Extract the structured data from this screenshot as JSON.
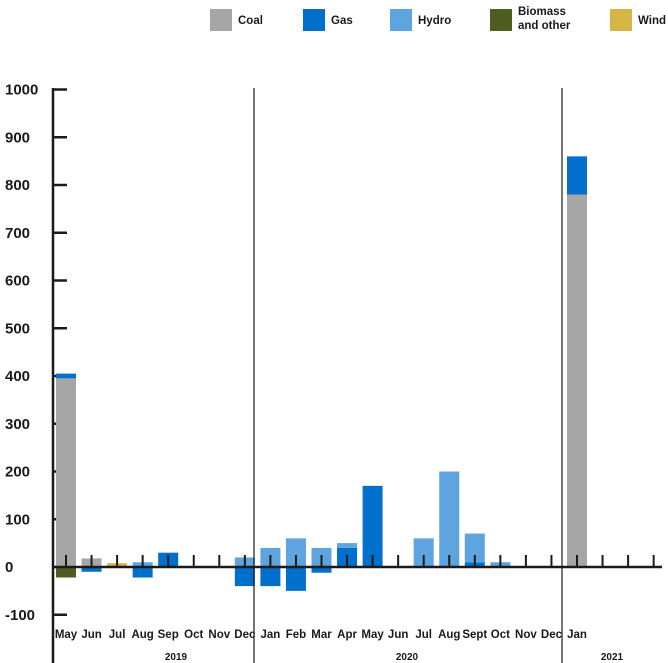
{
  "chart_data": {
    "type": "bar",
    "stacked": true,
    "categories": [
      "May",
      "Jun",
      "Jul",
      "Aug",
      "Sep",
      "Oct",
      "Nov",
      "Dec",
      "Jan",
      "Feb",
      "Mar",
      "Apr",
      "May",
      "Jun",
      "Jul",
      "Aug",
      "Sept",
      "Oct",
      "Nov",
      "Dec",
      "Jan",
      "",
      "",
      ""
    ],
    "year_labels": [
      {
        "label": "2019",
        "from": 0,
        "to": 7
      },
      {
        "label": "2020",
        "from": 8,
        "to": 19
      },
      {
        "label": "2021",
        "from": 20,
        "to": 23
      }
    ],
    "yticks": [
      -100,
      0,
      100,
      200,
      300,
      400,
      500,
      600,
      700,
      800,
      900,
      1000
    ],
    "ylim": [
      -100,
      1000
    ],
    "colors": {
      "Coal": "#a6a6a6",
      "Gas": "#0070cc",
      "Hydro": "#5ea5e0",
      "Biomass and other": "#4e5e23",
      "Wind": "#d4b545"
    },
    "series": [
      {
        "name": "Coal",
        "values": [
          395,
          18,
          0,
          0,
          0,
          0,
          0,
          0,
          0,
          0,
          0,
          0,
          0,
          0,
          0,
          0,
          0,
          0,
          0,
          0,
          780,
          0,
          0,
          0
        ]
      },
      {
        "name": "Gas",
        "values": [
          10,
          -10,
          0,
          -22,
          30,
          0,
          0,
          -40,
          -40,
          -50,
          -12,
          40,
          170,
          0,
          0,
          0,
          10,
          0,
          0,
          0,
          80,
          0,
          0,
          0
        ]
      },
      {
        "name": "Hydro",
        "values": [
          0,
          0,
          0,
          10,
          0,
          0,
          0,
          20,
          40,
          60,
          40,
          10,
          0,
          0,
          60,
          200,
          60,
          10,
          0,
          0,
          0,
          0,
          0,
          0
        ]
      },
      {
        "name": "Biomass and other",
        "values": [
          -22,
          0,
          0,
          0,
          0,
          0,
          0,
          0,
          0,
          0,
          0,
          0,
          0,
          0,
          0,
          0,
          0,
          0,
          0,
          0,
          0,
          0,
          0,
          0
        ]
      },
      {
        "name": "Wind",
        "values": [
          0,
          0,
          8,
          0,
          0,
          0,
          0,
          0,
          0,
          0,
          0,
          0,
          0,
          0,
          0,
          0,
          0,
          0,
          0,
          0,
          0,
          0,
          0,
          0
        ]
      }
    ],
    "legend": {
      "placement": "top",
      "items": [
        {
          "name": "Coal",
          "lines": [
            "Coal"
          ]
        },
        {
          "name": "Gas",
          "lines": [
            "Gas"
          ]
        },
        {
          "name": "Hydro",
          "lines": [
            "Hydro"
          ]
        },
        {
          "name": "Biomass and other",
          "lines": [
            "Biomass",
            "and other"
          ]
        },
        {
          "name": "Wind",
          "lines": [
            "Wind"
          ]
        }
      ]
    },
    "grid": false,
    "title": "",
    "xlabel": "",
    "ylabel": ""
  }
}
